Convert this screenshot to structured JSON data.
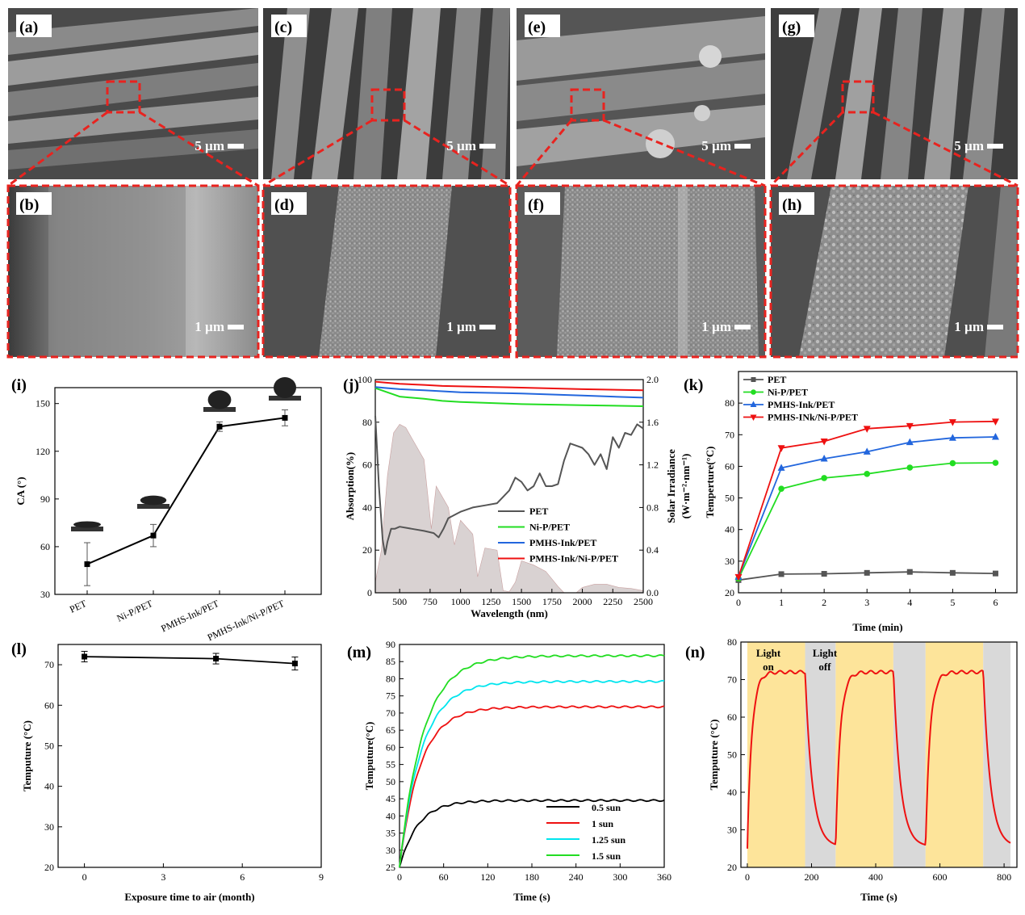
{
  "sem": {
    "top": [
      {
        "label": "(a)",
        "scale": "5 µm"
      },
      {
        "label": "(c)",
        "scale": "5 µm"
      },
      {
        "label": "(e)",
        "scale": "5 µm"
      },
      {
        "label": "(g)",
        "scale": "5 µm"
      }
    ],
    "bottom": [
      {
        "label": "(b)",
        "scale": "1 µm"
      },
      {
        "label": "(d)",
        "scale": "1 µm"
      },
      {
        "label": "(f)",
        "scale": "1 µm"
      },
      {
        "label": "(h)",
        "scale": "1 µm"
      }
    ]
  },
  "colors": {
    "pet": "#555555",
    "nip": "#22dd22",
    "pmhs": "#2266dd",
    "pmhs_nip": "#ee1111",
    "sun05": "#000000",
    "sun1": "#ee1111",
    "sun125": "#00e5ee",
    "sun15": "#22dd22",
    "light_on": "#fde49a",
    "light_off": "#d9d9d9",
    "dash": "#e8231f"
  },
  "chart_data": [
    {
      "id": "i",
      "label": "(i)",
      "type": "scatter",
      "categories": [
        "PET",
        "Ni-P/PET",
        "PMHS-Ink/PET",
        "PMHS-Ink/Ni-P/PET"
      ],
      "values": [
        49,
        67,
        135.5,
        141
      ],
      "errors": [
        13.5,
        7,
        3,
        5
      ],
      "ylabel": "CA (°)",
      "ylim": [
        30,
        160
      ],
      "yticks": [
        "30",
        "60",
        "90",
        "120",
        "150"
      ]
    },
    {
      "id": "j",
      "label": "(j)",
      "type": "line",
      "xlabel": "Wavelength (nm)",
      "ylabel": "Absorption(%)",
      "ylabel2_line1": "Solar Irradiance",
      "ylabel2_line2": "(W·m⁻²·nm⁻¹)",
      "xlim": [
        300,
        2500
      ],
      "ylim": [
        0,
        100
      ],
      "y2lim": [
        0,
        2.0
      ],
      "xticks": [
        "500",
        "750",
        "1000",
        "1250",
        "1500",
        "1750",
        "2000",
        "2250",
        "2500"
      ],
      "yticks": [
        "0",
        "20",
        "40",
        "60",
        "80",
        "100"
      ],
      "y2ticks": [
        "0.0",
        "0.4",
        "0.8",
        "1.2",
        "1.6",
        "2.0"
      ],
      "series": [
        {
          "name": "PET",
          "x": [
            300,
            330,
            360,
            380,
            400,
            430,
            460,
            500,
            600,
            700,
            780,
            820,
            860,
            900,
            1000,
            1100,
            1200,
            1300,
            1400,
            1450,
            1500,
            1550,
            1600,
            1650,
            1700,
            1750,
            1800,
            1850,
            1900,
            1950,
            2000,
            2050,
            2100,
            2150,
            2200,
            2250,
            2300,
            2350,
            2400,
            2450,
            2500
          ],
          "values": [
            83,
            50,
            25,
            18,
            24,
            30,
            30,
            31,
            30,
            29,
            28,
            26,
            30,
            35,
            38,
            40,
            41,
            42,
            48,
            54,
            52,
            48,
            50,
            56,
            50,
            50,
            51,
            62,
            70,
            69,
            68,
            65,
            60,
            65,
            58,
            73,
            68,
            75,
            74,
            79,
            77
          ]
        },
        {
          "name": "Ni-P/PET",
          "x": [
            300,
            400,
            500,
            700,
            850,
            1000,
            1500,
            2000,
            2500
          ],
          "values": [
            96,
            94,
            92,
            91,
            90,
            89.5,
            88.5,
            88,
            87.5
          ]
        },
        {
          "name": "PMHS-Ink/PET",
          "x": [
            300,
            400,
            500,
            700,
            850,
            1000,
            1500,
            2000,
            2500
          ],
          "values": [
            96.5,
            96,
            95.5,
            95,
            94.5,
            94,
            93.5,
            92.5,
            91.5
          ]
        },
        {
          "name": "PMHS-Ink/Ni-P/PET",
          "x": [
            300,
            400,
            500,
            700,
            850,
            1000,
            1500,
            2000,
            2500
          ],
          "values": [
            99,
            98.5,
            98,
            97.5,
            97,
            96.8,
            96.2,
            95.5,
            95
          ]
        }
      ],
      "solar": {
        "x": [
          300,
          350,
          400,
          450,
          500,
          550,
          600,
          700,
          760,
          800,
          900,
          950,
          1000,
          1100,
          1140,
          1200,
          1300,
          1350,
          1400,
          1450,
          1500,
          1600,
          1700,
          1800,
          1850,
          1950,
          2000,
          2100,
          2200,
          2300,
          2400,
          2500
        ],
        "values": [
          0.1,
          0.4,
          1.1,
          1.5,
          1.58,
          1.55,
          1.45,
          1.25,
          0.6,
          1.0,
          0.8,
          0.45,
          0.68,
          0.55,
          0.15,
          0.42,
          0.4,
          0.02,
          0.01,
          0.1,
          0.3,
          0.26,
          0.2,
          0.06,
          0,
          0,
          0.05,
          0.08,
          0.08,
          0.05,
          0.04,
          0.02
        ]
      }
    },
    {
      "id": "k",
      "label": "(k)",
      "type": "line",
      "xlabel": "Time (min)",
      "ylabel": "Temperture(°C)",
      "xlim": [
        0,
        6.5
      ],
      "ylim": [
        20,
        90
      ],
      "categories": [
        0,
        1,
        2,
        3,
        4,
        5,
        6
      ],
      "xticks": [
        "0",
        "1",
        "2",
        "3",
        "4",
        "5",
        "6"
      ],
      "yticks": [
        "20",
        "30",
        "40",
        "50",
        "60",
        "70",
        "80"
      ],
      "series": [
        {
          "name": "PET",
          "values": [
            24,
            25.9,
            26,
            26.3,
            26.6,
            26.3,
            26.1
          ]
        },
        {
          "name": "Ni-P/PET",
          "values": [
            24.5,
            52.9,
            56.3,
            57.6,
            59.6,
            61,
            61.1
          ]
        },
        {
          "name": "PMHS-Ink/PET",
          "values": [
            25,
            59.5,
            62.4,
            64.6,
            67.6,
            69,
            69.3
          ]
        },
        {
          "name": "PMHS-INk/Ni-P/PET",
          "values": [
            25,
            65.8,
            67.9,
            71.9,
            72.8,
            74,
            74.2
          ]
        }
      ]
    },
    {
      "id": "l",
      "label": "(l)",
      "type": "scatter",
      "xlabel": "Exposure time to air (month)",
      "ylabel": "Temputure (°C)",
      "xlim": [
        -1,
        9
      ],
      "ylim": [
        20,
        75
      ],
      "x": [
        0,
        5,
        8
      ],
      "values": [
        72,
        71.5,
        70.3
      ],
      "errors": [
        1.3,
        1.3,
        1.6
      ],
      "xticks": [
        "0",
        "3",
        "6",
        "9"
      ],
      "yticks": [
        "20",
        "30",
        "40",
        "50",
        "60",
        "70"
      ]
    },
    {
      "id": "m",
      "label": "(m)",
      "type": "line",
      "xlabel": "Time (s)",
      "ylabel": "Temputure(°C)",
      "xlim": [
        0,
        360
      ],
      "ylim": [
        25,
        90
      ],
      "xticks": [
        "0",
        "60",
        "120",
        "180",
        "240",
        "300",
        "360"
      ],
      "yticks": [
        "25",
        "30",
        "35",
        "40",
        "45",
        "50",
        "55",
        "60",
        "65",
        "70",
        "75",
        "80",
        "85",
        "90"
      ],
      "series": [
        {
          "name": "0.5 sun",
          "equilibrium": 44.5
        },
        {
          "name": "1 sun",
          "equilibrium": 71.8
        },
        {
          "name": "1.25 sun",
          "equilibrium": 79.2
        },
        {
          "name": "1.5 sun",
          "equilibrium": 86.7
        }
      ]
    },
    {
      "id": "n",
      "label": "(n)",
      "type": "line",
      "xlabel": "Time (s)",
      "ylabel": "Temputure (°C)",
      "xlim": [
        -20,
        840
      ],
      "ylim": [
        20,
        80
      ],
      "xticks": [
        "0",
        "200",
        "400",
        "600",
        "800"
      ],
      "yticks": [
        "20",
        "30",
        "40",
        "50",
        "60",
        "70",
        "80"
      ],
      "annotations": {
        "light_on_1": "Light",
        "light_on_2": "on",
        "light_off_1": "Light",
        "light_off_2": "off"
      },
      "light_on": [
        [
          0,
          180
        ],
        [
          275,
          455
        ],
        [
          555,
          735
        ]
      ],
      "light_off": [
        [
          180,
          275
        ],
        [
          455,
          555
        ],
        [
          735,
          820
        ]
      ],
      "max_temp": 72,
      "min_temp": 25
    }
  ]
}
